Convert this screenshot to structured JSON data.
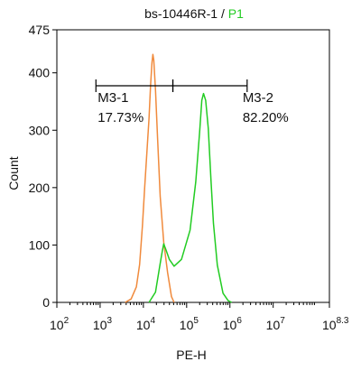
{
  "chart_data": {
    "type": "line",
    "title": {
      "sample": "bs-10446R-1",
      "separator": " / ",
      "gate": "P1",
      "gate_color": "#22cc22"
    },
    "xlabel": "PE-H",
    "ylabel": "Count",
    "x_scale": "log",
    "xlim": [
      100,
      199526231
    ],
    "ylim": [
      0,
      475
    ],
    "x_ticks": [
      {
        "base": "10",
        "exp": "2",
        "value": 100
      },
      {
        "base": "10",
        "exp": "3",
        "value": 1000
      },
      {
        "base": "10",
        "exp": "4",
        "value": 10000
      },
      {
        "base": "10",
        "exp": "5",
        "value": 100000
      },
      {
        "base": "10",
        "exp": "6",
        "value": 1000000
      },
      {
        "base": "10",
        "exp": "7",
        "value": 10000000
      },
      {
        "base": "10",
        "exp": "8.3",
        "value": 199526231
      }
    ],
    "y_ticks": [
      0,
      100,
      200,
      300,
      400,
      475
    ],
    "series": [
      {
        "color": "#f08a3c",
        "x": [
          3800,
          5200,
          6900,
          8200,
          9500,
          10700,
          12000,
          13500,
          14700,
          15800,
          16600,
          17400,
          19100,
          21300,
          24500,
          29500,
          36300,
          44700,
          51300
        ],
        "y": [
          0,
          6,
          27,
          66,
          133,
          200,
          260,
          320,
          380,
          418,
          432,
          422,
          370,
          286,
          185,
          105,
          52,
          10,
          0
        ]
      },
      {
        "color": "#22cc22",
        "x": [
          13500,
          19100,
          24000,
          27500,
          29500,
          33100,
          39800,
          51300,
          75900,
          120200,
          162200,
          199500,
          223900,
          245500,
          275400,
          316200,
          363100,
          416900,
          512900,
          691800,
          912000,
          1096000
        ],
        "y": [
          0,
          18,
          64,
          90,
          102,
          92,
          75,
          63,
          75,
          126,
          210,
          297,
          352,
          364,
          352,
          303,
          215,
          138,
          65,
          16,
          3,
          0
        ]
      }
    ],
    "markers": [
      {
        "name": "M3-1",
        "percent": "17.73%",
        "start": 800,
        "end": 48000
      },
      {
        "name": "M3-2",
        "percent": "82.20%",
        "start": 48000,
        "end": 2500000
      }
    ]
  }
}
